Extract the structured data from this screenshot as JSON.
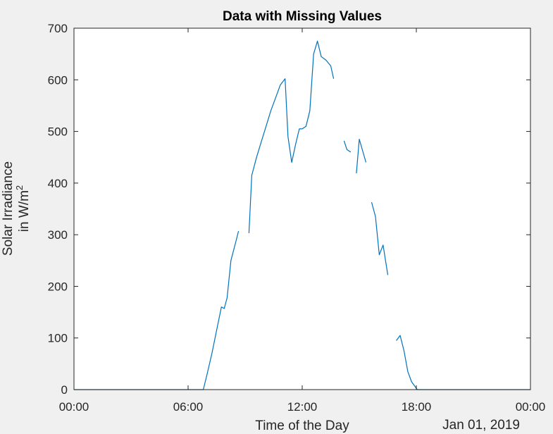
{
  "chart_data": {
    "type": "line",
    "title": "Data with Missing Values",
    "xlabel": "Time of the Day",
    "ylabel_line1": "Solar Irradiance",
    "ylabel_line2_prefix": "in W/m",
    "ylabel_line2_superscript": "2",
    "date_label": "Jan 01, 2019",
    "x_unit": "hours",
    "xlim": [
      0,
      24
    ],
    "ylim": [
      0,
      700
    ],
    "x_ticks": [
      0,
      6,
      12,
      18,
      24
    ],
    "x_tick_labels": [
      "00:00",
      "06:00",
      "12:00",
      "18:00",
      "00:00"
    ],
    "y_ticks": [
      0,
      100,
      200,
      300,
      400,
      500,
      600,
      700
    ],
    "y_tick_labels": [
      "0",
      "100",
      "200",
      "300",
      "400",
      "500",
      "600",
      "700"
    ],
    "grid": false,
    "series_color": "#0072bd",
    "series": [
      {
        "segments": [
          [
            [
              0,
              0
            ],
            [
              6.8,
              0
            ],
            [
              7.0,
              30
            ],
            [
              7.25,
              70
            ],
            [
              7.5,
              115
            ],
            [
              7.75,
              160
            ],
            [
              7.9,
              157
            ],
            [
              8.05,
              178
            ],
            [
              8.25,
              250
            ],
            [
              8.5,
              285
            ],
            [
              8.65,
              307
            ]
          ],
          [
            [
              9.2,
              303
            ],
            [
              9.35,
              415
            ],
            [
              9.6,
              450
            ],
            [
              9.85,
              480
            ],
            [
              10.1,
              510
            ],
            [
              10.35,
              540
            ],
            [
              10.6,
              565
            ],
            [
              10.85,
              590
            ],
            [
              11.1,
              602
            ],
            [
              11.25,
              490
            ],
            [
              11.45,
              440
            ],
            [
              11.65,
              475
            ],
            [
              11.85,
              505
            ],
            [
              12.0,
              505
            ],
            [
              12.2,
              510
            ],
            [
              12.4,
              540
            ],
            [
              12.6,
              650
            ],
            [
              12.8,
              675
            ],
            [
              13.0,
              645
            ],
            [
              13.25,
              638
            ],
            [
              13.5,
              627
            ],
            [
              13.65,
              602
            ]
          ],
          [
            [
              14.2,
              482
            ],
            [
              14.35,
              465
            ],
            [
              14.55,
              460
            ]
          ],
          [
            [
              14.85,
              419
            ],
            [
              15.0,
              485
            ],
            [
              15.35,
              440
            ]
          ],
          [
            [
              15.65,
              363
            ],
            [
              15.85,
              335
            ],
            [
              16.05,
              261
            ],
            [
              16.25,
              280
            ],
            [
              16.5,
              222
            ]
          ],
          [
            [
              16.95,
              95
            ],
            [
              17.15,
              105
            ],
            [
              17.35,
              75
            ],
            [
              17.55,
              35
            ],
            [
              17.75,
              15
            ],
            [
              18.05,
              0
            ],
            [
              24,
              0
            ]
          ]
        ]
      }
    ]
  }
}
